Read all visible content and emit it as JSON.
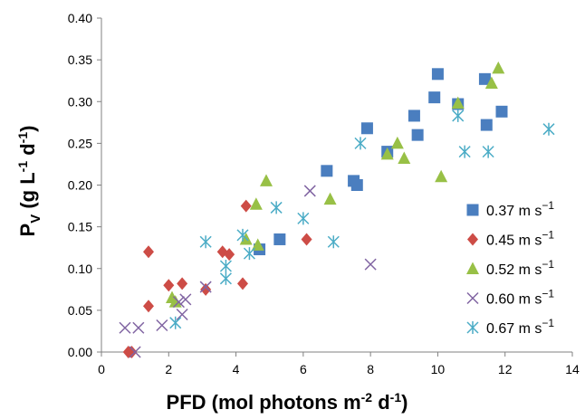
{
  "chart_data": {
    "type": "scatter",
    "xlabel": {
      "main": "PFD (mol photons m",
      "sup1": "-2",
      "mid": " d",
      "sup2": "-1",
      "end": ")"
    },
    "ylabel": {
      "main": "P",
      "sub": "V",
      "rest": " (g L",
      "sup1": "-1",
      "mid": " d",
      "sup2": "-1",
      "end": ")"
    },
    "xlim": [
      0,
      14
    ],
    "ylim": [
      0,
      0.4
    ],
    "x_ticks": [
      "0",
      "2",
      "4",
      "6",
      "8",
      "10",
      "12",
      "14"
    ],
    "y_ticks": [
      "0.00",
      "0.05",
      "0.10",
      "0.15",
      "0.20",
      "0.25",
      "0.30",
      "0.35",
      "0.40"
    ],
    "grid": false,
    "legend_position": "right",
    "series": [
      {
        "name": "0.37 m s",
        "name_sup": "−1",
        "marker": "square",
        "color": "#4a7ebf",
        "points": [
          [
            4.7,
            0.123
          ],
          [
            5.3,
            0.135
          ],
          [
            6.7,
            0.217
          ],
          [
            7.5,
            0.205
          ],
          [
            7.6,
            0.2
          ],
          [
            7.9,
            0.268
          ],
          [
            8.5,
            0.24
          ],
          [
            9.3,
            0.283
          ],
          [
            9.4,
            0.26
          ],
          [
            9.9,
            0.305
          ],
          [
            10.0,
            0.333
          ],
          [
            10.6,
            0.297
          ],
          [
            11.4,
            0.327
          ],
          [
            11.45,
            0.272
          ],
          [
            11.9,
            0.288
          ]
        ]
      },
      {
        "name": "0.45 m s",
        "name_sup": "−1",
        "marker": "diamond",
        "color": "#cd4c46",
        "points": [
          [
            0.8,
            0.0
          ],
          [
            0.9,
            0.0
          ],
          [
            1.4,
            0.12
          ],
          [
            1.4,
            0.055
          ],
          [
            2.0,
            0.08
          ],
          [
            2.4,
            0.082
          ],
          [
            3.1,
            0.075
          ],
          [
            3.6,
            0.12
          ],
          [
            3.8,
            0.117
          ],
          [
            4.2,
            0.082
          ],
          [
            4.3,
            0.175
          ],
          [
            6.1,
            0.135
          ]
        ]
      },
      {
        "name": "0.52 m s",
        "name_sup": "−1",
        "marker": "triangle",
        "color": "#98c046",
        "points": [
          [
            2.1,
            0.065
          ],
          [
            2.2,
            0.06
          ],
          [
            4.3,
            0.135
          ],
          [
            4.6,
            0.177
          ],
          [
            4.65,
            0.128
          ],
          [
            4.9,
            0.205
          ],
          [
            6.8,
            0.183
          ],
          [
            8.5,
            0.237
          ],
          [
            8.8,
            0.25
          ],
          [
            9.0,
            0.232
          ],
          [
            10.1,
            0.21
          ],
          [
            10.6,
            0.298
          ],
          [
            11.6,
            0.322
          ],
          [
            11.8,
            0.34
          ]
        ]
      },
      {
        "name": "0.60 m s",
        "name_sup": "−1",
        "marker": "x",
        "color": "#8064a2",
        "points": [
          [
            0.7,
            0.029
          ],
          [
            1.0,
            0.0
          ],
          [
            1.1,
            0.029
          ],
          [
            1.8,
            0.032
          ],
          [
            2.4,
            0.045
          ],
          [
            2.5,
            0.063
          ],
          [
            2.3,
            0.06
          ],
          [
            3.1,
            0.078
          ],
          [
            6.2,
            0.193
          ],
          [
            8.0,
            0.105
          ]
        ]
      },
      {
        "name": "0.67 m s",
        "name_sup": "−1",
        "marker": "asterisk",
        "color": "#4bacc6",
        "points": [
          [
            2.2,
            0.035
          ],
          [
            3.1,
            0.132
          ],
          [
            3.7,
            0.103
          ],
          [
            3.7,
            0.088
          ],
          [
            4.2,
            0.14
          ],
          [
            4.4,
            0.118
          ],
          [
            5.2,
            0.173
          ],
          [
            6.0,
            0.16
          ],
          [
            6.9,
            0.132
          ],
          [
            7.7,
            0.25
          ],
          [
            10.6,
            0.283
          ],
          [
            10.8,
            0.24
          ],
          [
            11.5,
            0.24
          ],
          [
            13.3,
            0.267
          ]
        ]
      }
    ]
  }
}
